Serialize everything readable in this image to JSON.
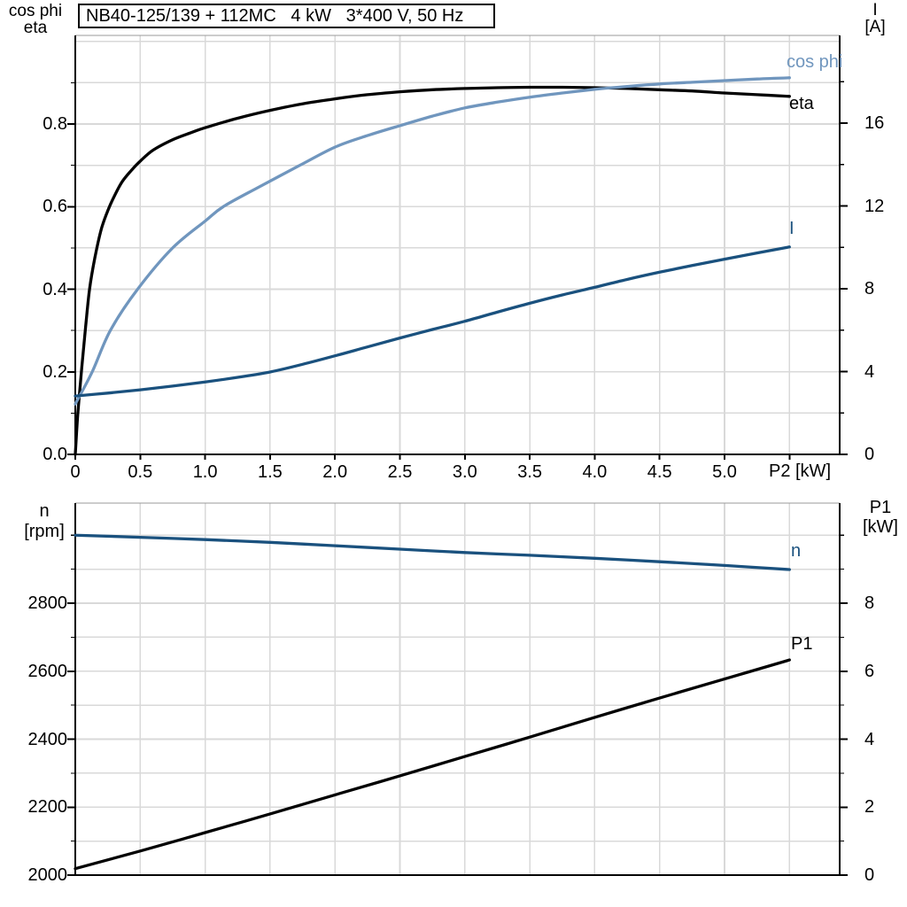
{
  "header": {
    "title": "NB40-125/139 + 112MC   4 kW   3*400 V, 50 Hz"
  },
  "colors": {
    "eta": "#000000",
    "cos_phi": "#7096BE",
    "current": "#1A517E",
    "speed": "#1A517E",
    "p1": "#000000",
    "grid": "#D9D9D9",
    "frame_top": "#999999",
    "axis": "#000000"
  },
  "chart_data": [
    {
      "id": "motor-electrical-curves",
      "type": "line",
      "x_axis": {
        "label": "P2 [kW]",
        "min": 0,
        "max": 5.89,
        "ticks": [
          0,
          0.5,
          1.0,
          1.5,
          2.0,
          2.5,
          3.0,
          3.5,
          4.0,
          4.5,
          5.0
        ],
        "tick_labels": [
          "0",
          "0.5",
          "1.0",
          "1.5",
          "2.0",
          "2.5",
          "3.0",
          "3.5",
          "4.0",
          "4.5",
          "5.0"
        ],
        "grid_step": 0.5
      },
      "left_axis": {
        "title_lines": [
          "cos phi",
          "eta"
        ],
        "min": 0,
        "max": 1.015,
        "ticks": [
          0.0,
          0.2,
          0.4,
          0.6,
          0.8
        ],
        "tick_labels": [
          "0.0",
          "0.2",
          "0.4",
          "0.6",
          "0.8"
        ],
        "grid_step": 0.1
      },
      "right_axis": {
        "title_lines": [
          "I",
          "[A]"
        ],
        "min": 0,
        "max": 20.2,
        "ticks": [
          0,
          4,
          8,
          12,
          16
        ],
        "tick_labels": [
          "0",
          "4",
          "8",
          "12",
          "16"
        ],
        "grid_step": 2
      },
      "series": [
        {
          "name": "eta",
          "label": "eta",
          "axis": "left",
          "color": "#000000",
          "points": [
            [
              0,
              0
            ],
            [
              0.02,
              0.1
            ],
            [
              0.05,
              0.21
            ],
            [
              0.08,
              0.31
            ],
            [
              0.11,
              0.4
            ],
            [
              0.15,
              0.475
            ],
            [
              0.2,
              0.545
            ],
            [
              0.25,
              0.59
            ],
            [
              0.3,
              0.625
            ],
            [
              0.36,
              0.66
            ],
            [
              0.43,
              0.687
            ],
            [
              0.5,
              0.71
            ],
            [
              0.6,
              0.737
            ],
            [
              0.75,
              0.762
            ],
            [
              0.9,
              0.78
            ],
            [
              1.0,
              0.791
            ],
            [
              1.25,
              0.814
            ],
            [
              1.5,
              0.833
            ],
            [
              1.75,
              0.849
            ],
            [
              2.0,
              0.861
            ],
            [
              2.25,
              0.871
            ],
            [
              2.5,
              0.878
            ],
            [
              2.75,
              0.883
            ],
            [
              3.0,
              0.886
            ],
            [
              3.25,
              0.888
            ],
            [
              3.5,
              0.889
            ],
            [
              3.75,
              0.889
            ],
            [
              4.0,
              0.888
            ],
            [
              4.25,
              0.886
            ],
            [
              4.5,
              0.883
            ],
            [
              4.75,
              0.88
            ],
            [
              5.0,
              0.875
            ],
            [
              5.25,
              0.871
            ],
            [
              5.5,
              0.867
            ]
          ]
        },
        {
          "name": "cos phi",
          "label": "cos phi",
          "axis": "left",
          "color": "#7096BE",
          "points": [
            [
              0,
              0.122
            ],
            [
              0.13,
              0.2
            ],
            [
              0.27,
              0.3
            ],
            [
              0.48,
              0.4
            ],
            [
              0.75,
              0.5
            ],
            [
              1.0,
              0.565
            ],
            [
              1.14,
              0.6
            ],
            [
              1.4,
              0.645
            ],
            [
              1.73,
              0.7
            ],
            [
              2.0,
              0.744
            ],
            [
              2.25,
              0.772
            ],
            [
              2.5,
              0.796
            ],
            [
              2.75,
              0.819
            ],
            [
              3.0,
              0.839
            ],
            [
              3.25,
              0.853
            ],
            [
              3.5,
              0.865
            ],
            [
              3.75,
              0.875
            ],
            [
              4.0,
              0.884
            ],
            [
              4.25,
              0.891
            ],
            [
              4.5,
              0.897
            ],
            [
              4.75,
              0.901
            ],
            [
              5.0,
              0.905
            ],
            [
              5.25,
              0.909
            ],
            [
              5.5,
              0.912
            ]
          ]
        },
        {
          "name": "I",
          "label": "I",
          "axis": "right",
          "color": "#1A517E",
          "points": [
            [
              0,
              2.82
            ],
            [
              0.25,
              2.96
            ],
            [
              0.5,
              3.12
            ],
            [
              0.75,
              3.3
            ],
            [
              1.0,
              3.5
            ],
            [
              1.25,
              3.72
            ],
            [
              1.5,
              3.98
            ],
            [
              1.75,
              4.35
            ],
            [
              2.0,
              4.76
            ],
            [
              2.25,
              5.19
            ],
            [
              2.5,
              5.62
            ],
            [
              2.75,
              6.03
            ],
            [
              3.0,
              6.43
            ],
            [
              3.25,
              6.87
            ],
            [
              3.5,
              7.3
            ],
            [
              3.75,
              7.7
            ],
            [
              4.0,
              8.07
            ],
            [
              4.25,
              8.45
            ],
            [
              4.5,
              8.8
            ],
            [
              4.75,
              9.12
            ],
            [
              5.0,
              9.43
            ],
            [
              5.25,
              9.73
            ],
            [
              5.5,
              10.02
            ]
          ]
        }
      ]
    },
    {
      "id": "speed-power-curves",
      "type": "line",
      "x_axis": {
        "label": "",
        "min": 0,
        "max": 5.89,
        "ticks": [],
        "tick_labels": [],
        "grid_step": 0.5
      },
      "left_axis": {
        "title_lines": [
          "n",
          "[rpm]"
        ],
        "min": 2000,
        "max": 3095,
        "ticks": [
          2000,
          2200,
          2400,
          2600,
          2800
        ],
        "tick_labels": [
          "2000",
          "2200",
          "2400",
          "2600",
          "2800"
        ],
        "grid_step": 100
      },
      "right_axis": {
        "title_lines": [
          "P1",
          "[kW]"
        ],
        "min": 0,
        "max": 10.95,
        "ticks": [
          0,
          2,
          4,
          6,
          8
        ],
        "tick_labels": [
          "0",
          "2",
          "4",
          "6",
          "8"
        ],
        "grid_step": 1
      },
      "series": [
        {
          "name": "n",
          "label": "n",
          "axis": "left",
          "color": "#1A517E",
          "points": [
            [
              0,
              3000
            ],
            [
              0.5,
              2994
            ],
            [
              1.0,
              2987
            ],
            [
              1.5,
              2979
            ],
            [
              2.0,
              2969
            ],
            [
              2.5,
              2959
            ],
            [
              3.0,
              2949
            ],
            [
              3.5,
              2941
            ],
            [
              4.0,
              2932
            ],
            [
              4.5,
              2922
            ],
            [
              5.0,
              2911
            ],
            [
              5.5,
              2899
            ]
          ]
        },
        {
          "name": "P1",
          "label": "P1",
          "axis": "left_is_not_used",
          "color": "#000000",
          "axis_used": "right",
          "points": [
            [
              0,
              0.19
            ],
            [
              0.5,
              0.71
            ],
            [
              1.0,
              1.25
            ],
            [
              1.5,
              1.8
            ],
            [
              2.0,
              2.36
            ],
            [
              2.5,
              2.92
            ],
            [
              3.0,
              3.49
            ],
            [
              3.5,
              4.06
            ],
            [
              4.0,
              4.64
            ],
            [
              4.5,
              5.21
            ],
            [
              5.0,
              5.77
            ],
            [
              5.5,
              6.33
            ]
          ]
        }
      ]
    }
  ]
}
